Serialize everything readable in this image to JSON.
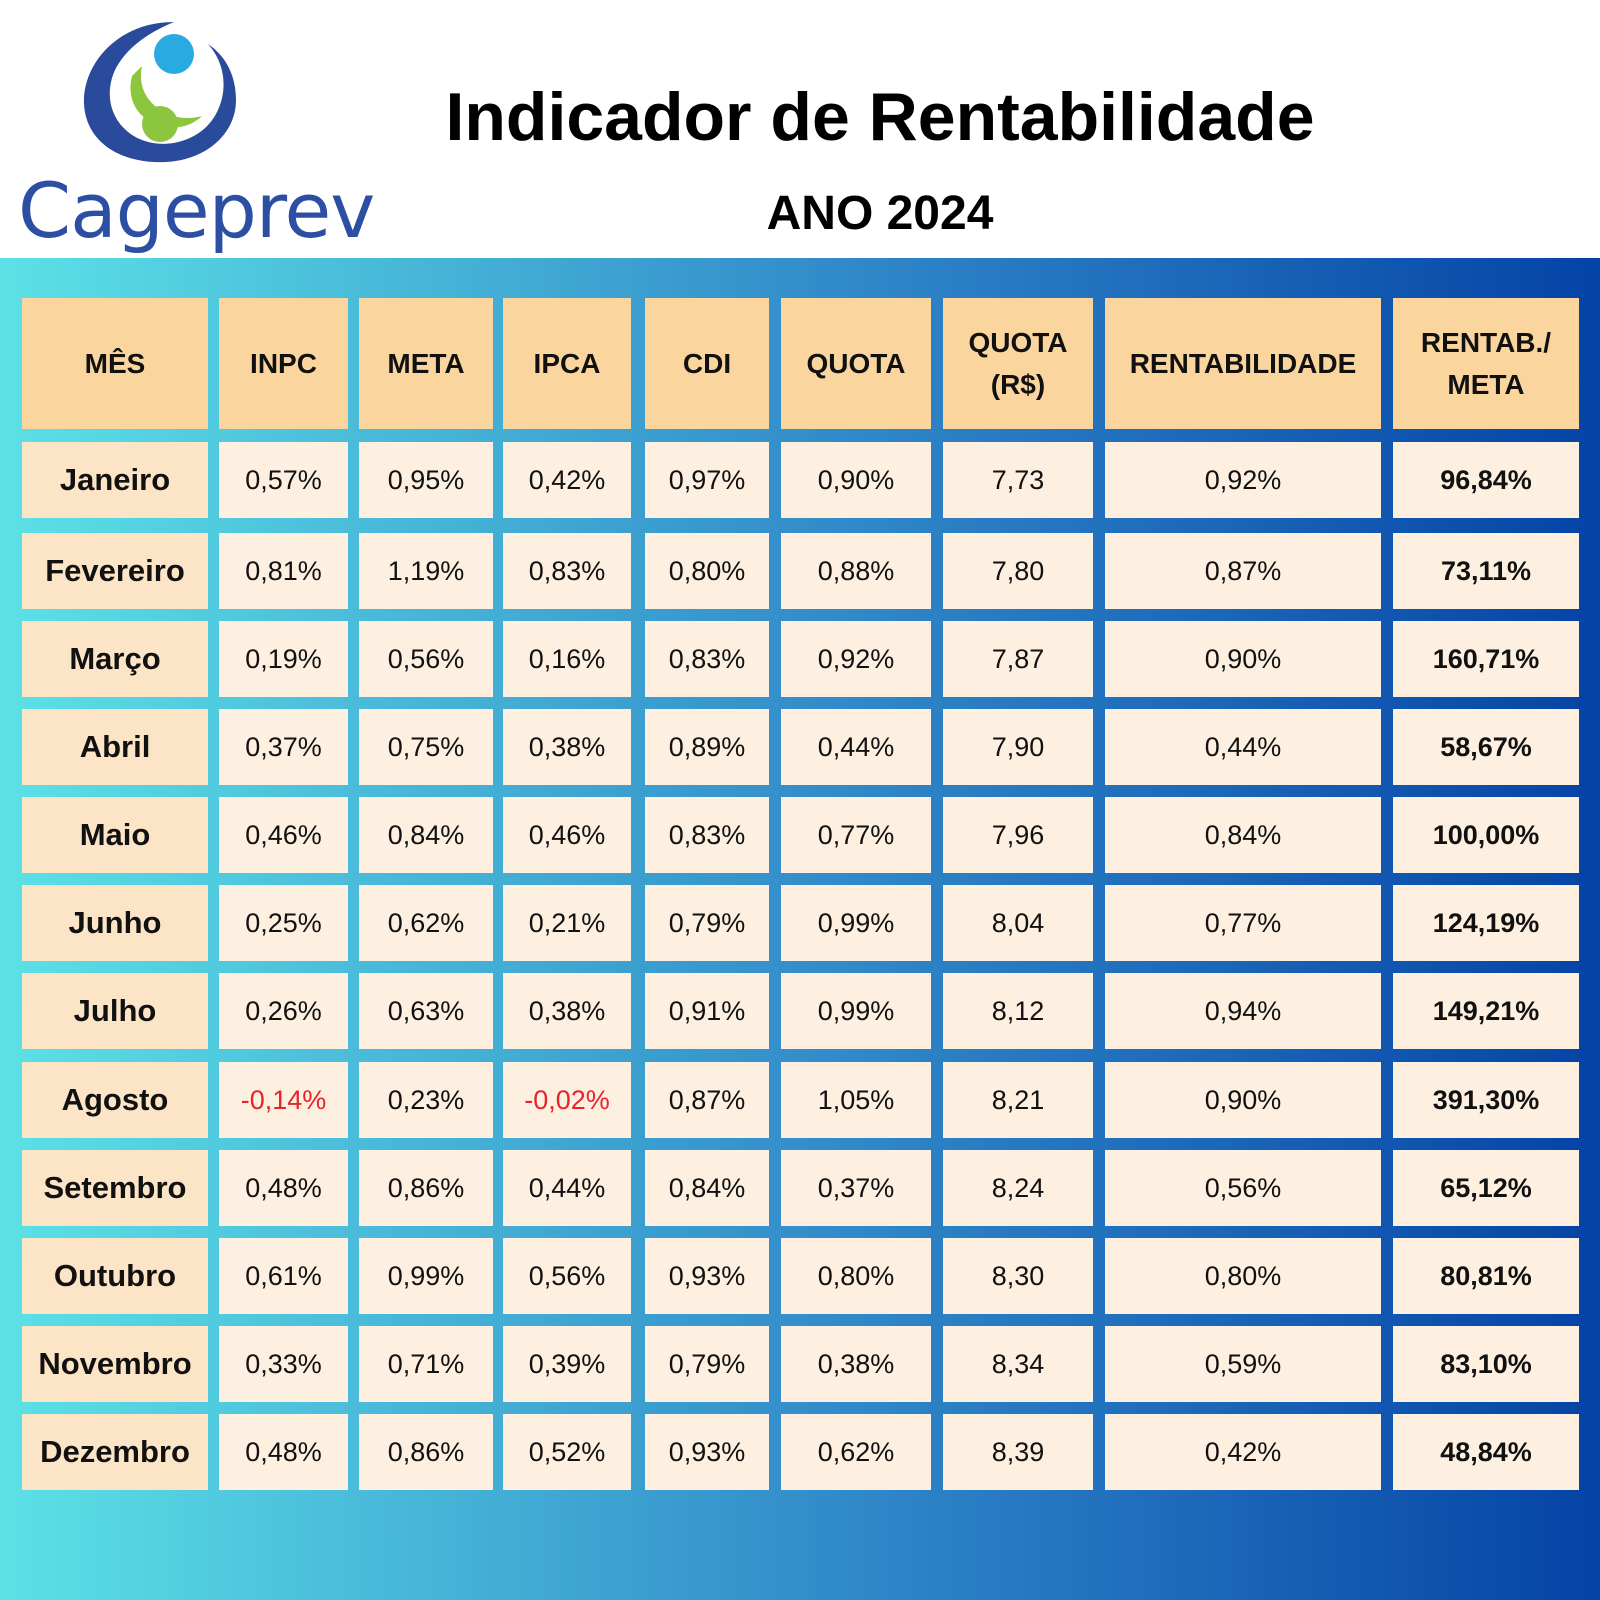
{
  "brand": {
    "name": "Cageprev"
  },
  "header": {
    "title": "Indicador de Rentabilidade",
    "subtitle": "ANO 2024"
  },
  "colors": {
    "header_cell": "#fbd59e",
    "month_cell": "#fce4c6",
    "value_cell": "#fdf0e0",
    "negative": "#e8232a",
    "gradient_start": "#5ce1e6",
    "gradient_end": "#0443a6"
  },
  "table": {
    "columns": [
      "MÊS",
      "INPC",
      "META",
      "IPCA",
      "CDI",
      "QUOTA",
      "QUOTA\n(R$)",
      "RENTABILIDADE",
      "RENTAB./\nMETA"
    ],
    "rows": [
      [
        "Janeiro",
        "0,57%",
        "0,95%",
        "0,42%",
        "0,97%",
        "0,90%",
        "7,73",
        "0,92%",
        "96,84%"
      ],
      [
        "Fevereiro",
        "0,81%",
        "1,19%",
        "0,83%",
        "0,80%",
        "0,88%",
        "7,80",
        "0,87%",
        "73,11%"
      ],
      [
        "Março",
        "0,19%",
        "0,56%",
        "0,16%",
        "0,83%",
        "0,92%",
        "7,87",
        "0,90%",
        "160,71%"
      ],
      [
        "Abril",
        "0,37%",
        "0,75%",
        "0,38%",
        "0,89%",
        "0,44%",
        "7,90",
        "0,44%",
        "58,67%"
      ],
      [
        "Maio",
        "0,46%",
        "0,84%",
        "0,46%",
        "0,83%",
        "0,77%",
        "7,96",
        "0,84%",
        "100,00%"
      ],
      [
        "Junho",
        "0,25%",
        "0,62%",
        "0,21%",
        "0,79%",
        "0,99%",
        "8,04",
        "0,77%",
        "124,19%"
      ],
      [
        "Julho",
        "0,26%",
        "0,63%",
        "0,38%",
        "0,91%",
        "0,99%",
        "8,12",
        "0,94%",
        "149,21%"
      ],
      [
        "Agosto",
        "-0,14%",
        "0,23%",
        "-0,02%",
        "0,87%",
        "1,05%",
        "8,21",
        "0,90%",
        "391,30%"
      ],
      [
        "Setembro",
        "0,48%",
        "0,86%",
        "0,44%",
        "0,84%",
        "0,37%",
        "8,24",
        "0,56%",
        "65,12%"
      ],
      [
        "Outubro",
        "0,61%",
        "0,99%",
        "0,56%",
        "0,93%",
        "0,80%",
        "8,30",
        "0,80%",
        "80,81%"
      ],
      [
        "Novembro",
        "0,33%",
        "0,71%",
        "0,39%",
        "0,79%",
        "0,38%",
        "8,34",
        "0,59%",
        "83,10%"
      ],
      [
        "Dezembro",
        "0,48%",
        "0,86%",
        "0,52%",
        "0,93%",
        "0,62%",
        "8,39",
        "0,42%",
        "48,84%"
      ]
    ]
  }
}
